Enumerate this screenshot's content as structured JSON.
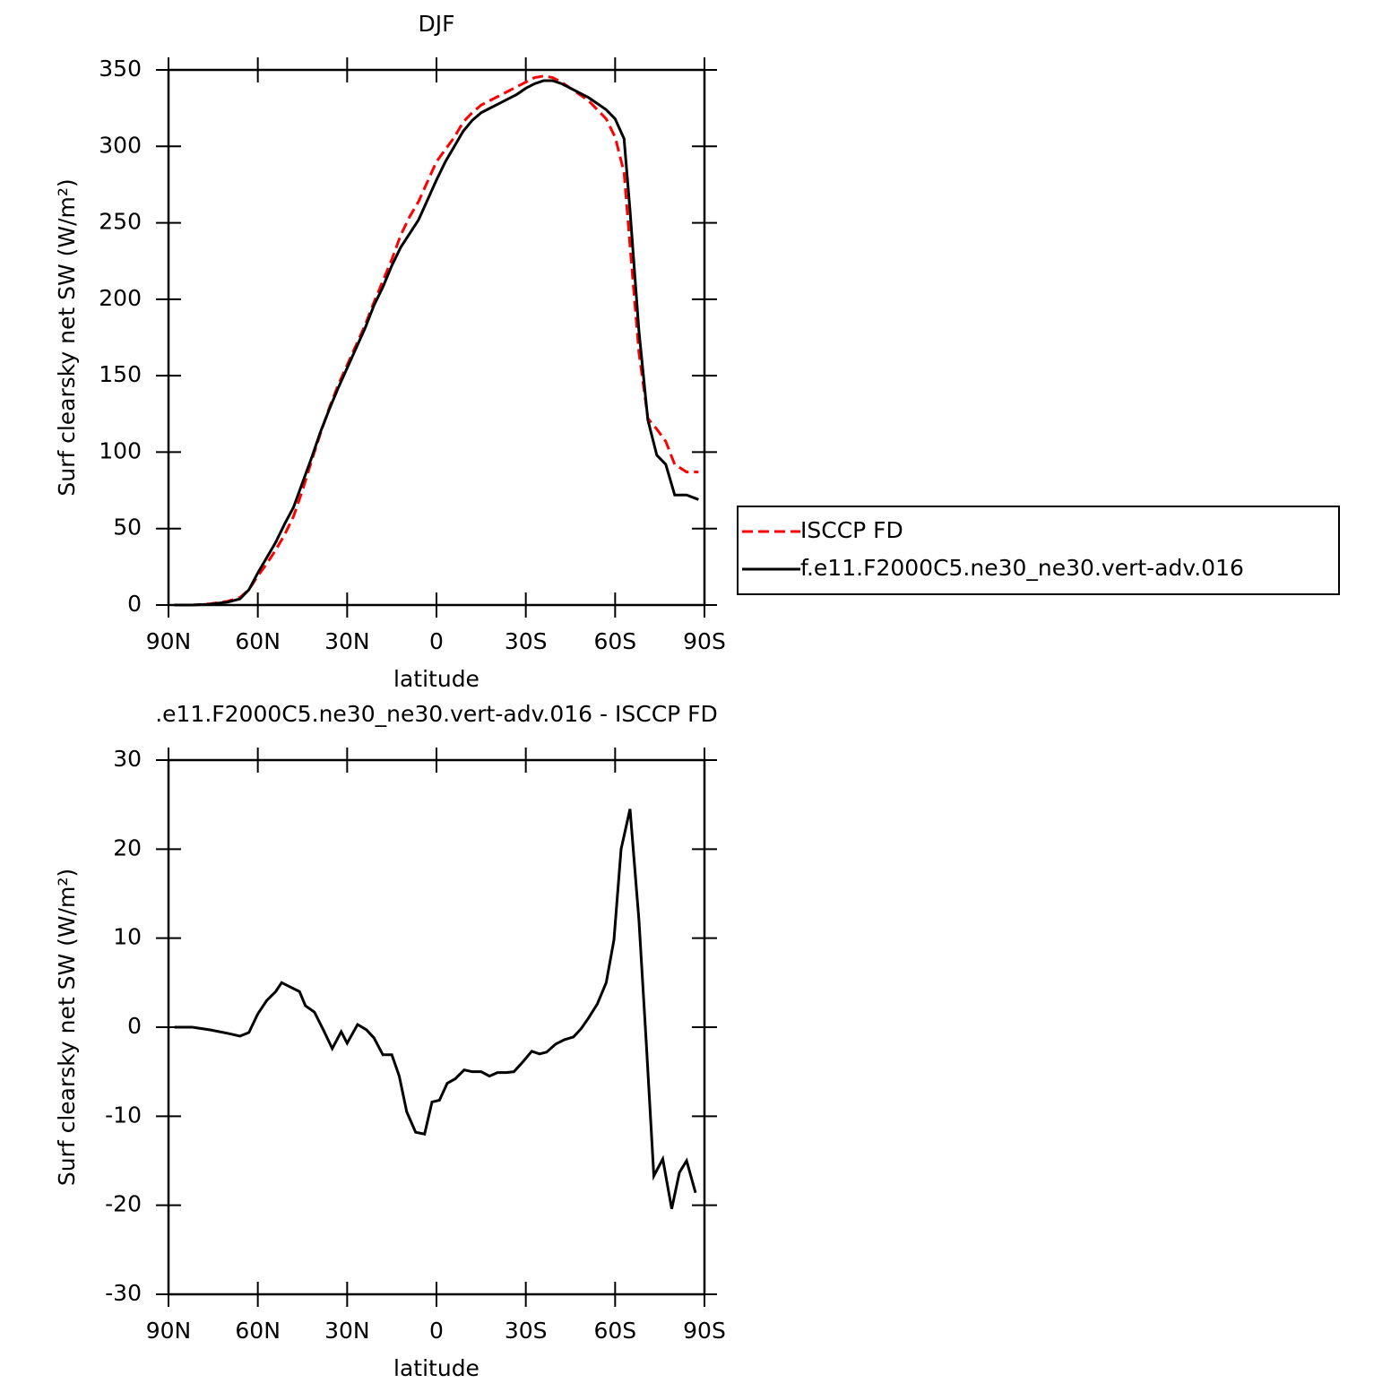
{
  "chart_data": [
    {
      "type": "line",
      "title": "DJF",
      "xlabel": "latitude",
      "ylabel": "Surf clearsky net SW (W/m²)",
      "x": [
        88,
        82,
        76,
        70,
        66,
        63,
        60,
        57,
        54,
        51,
        48,
        45,
        42,
        39,
        36,
        33,
        30,
        27,
        24,
        21,
        18,
        15,
        12,
        9,
        6,
        3,
        0,
        -3,
        -6,
        -9,
        -12,
        -15,
        -18,
        -21,
        -24,
        -27,
        -30,
        -33,
        -36,
        -39,
        -42,
        -45,
        -48,
        -51,
        -54,
        -57,
        -60,
        -63,
        -65,
        -68,
        -71,
        -74,
        -77,
        -80,
        -84,
        -88
      ],
      "series": [
        {
          "name": "ISCCP FD",
          "color": "#ff0000",
          "style": "dashed",
          "values": [
            0,
            0,
            0.8,
            2.5,
            5,
            10,
            19,
            27,
            36,
            46,
            58,
            75,
            94,
            112,
            129,
            144,
            157,
            170,
            183,
            198,
            212,
            226,
            242,
            254,
            264,
            277,
            290,
            298,
            306,
            316,
            322,
            327,
            330,
            333,
            336,
            339,
            342,
            345,
            346,
            345,
            342,
            338,
            334,
            330,
            324,
            318,
            306,
            283,
            235,
            165,
            122,
            115,
            107,
            92,
            87,
            87
          ]
        },
        {
          "name": "f.e11.F2000C5.ne30_ne30.vert-adv.016",
          "color": "#000000",
          "style": "solid",
          "values": [
            0,
            0,
            0.5,
            2,
            4,
            10,
            21,
            31,
            41,
            53,
            64,
            80,
            96,
            113,
            128,
            142,
            155,
            168,
            181,
            196,
            208,
            222,
            234,
            243,
            252,
            265,
            278,
            290,
            300,
            310,
            317,
            322,
            325,
            328,
            331,
            334,
            338,
            341,
            343,
            343,
            341,
            338,
            335,
            332,
            328,
            324,
            318,
            305,
            258,
            179,
            121,
            98,
            92,
            72,
            72,
            69
          ]
        }
      ],
      "xlim": [
        90,
        -90
      ],
      "xticks": [
        {
          "value": 90,
          "label": "90N"
        },
        {
          "value": 60,
          "label": "60N"
        },
        {
          "value": 30,
          "label": "30N"
        },
        0,
        {
          "value": -30,
          "label": "30S"
        },
        {
          "value": -60,
          "label": "60S"
        },
        {
          "value": -90,
          "label": "90S"
        }
      ],
      "ylim": [
        0,
        350
      ],
      "yticks": [
        0,
        50,
        100,
        150,
        200,
        250,
        300,
        350
      ],
      "legend": "right"
    },
    {
      "type": "line",
      "title": ".e11.F2000C5.ne30_ne30.vert-adv.016 - ISCCP FD",
      "xlabel": "latitude",
      "ylabel": "Surf clearsky net SW (W/m²)",
      "x": [
        88,
        82,
        76,
        70,
        66,
        63,
        60,
        57,
        54,
        52,
        49,
        46,
        44,
        41,
        38,
        35,
        32,
        30,
        26.5,
        23.5,
        21,
        18,
        15,
        12.5,
        10,
        7,
        4,
        1.5,
        -1,
        -3.6,
        -6.3,
        -9.3,
        -12,
        -15,
        -17.8,
        -20.5,
        -23.5,
        -26,
        -29,
        -32,
        -34.6,
        -37,
        -40,
        -43,
        -46,
        -48.5,
        -51,
        -54,
        -57,
        -59.6,
        -62,
        -65,
        -68,
        -70.5,
        -73,
        -76,
        -79,
        -81.6,
        -84,
        -87
      ],
      "series": [
        {
          "color": "#000000",
          "style": "solid",
          "values": [
            0,
            0,
            -0.3,
            -0.7,
            -1,
            -0.6,
            1.5,
            3,
            4,
            5,
            4.5,
            4,
            2.4,
            1.7,
            -0.3,
            -2.4,
            -0.5,
            -1.8,
            0.3,
            -0.3,
            -1.2,
            -3.1,
            -3.1,
            -5.5,
            -9.5,
            -11.8,
            -12,
            -8.4,
            -8.2,
            -6.3,
            -5.8,
            -4.8,
            -5,
            -5,
            -5.5,
            -5.1,
            -5.1,
            -5,
            -3.9,
            -2.7,
            -3,
            -2.8,
            -1.9,
            -1.4,
            -1.1,
            -0.2,
            1,
            2.6,
            5,
            9.8,
            20,
            24.5,
            12,
            -2,
            -16.7,
            -14.8,
            -20.4,
            -16.3,
            -15,
            -18.6
          ]
        }
      ],
      "xlim": [
        90,
        -90
      ],
      "xticks": [
        {
          "value": 90,
          "label": "90N"
        },
        {
          "value": 60,
          "label": "60N"
        },
        {
          "value": 30,
          "label": "30N"
        },
        0,
        {
          "value": -30,
          "label": "30S"
        },
        {
          "value": -60,
          "label": "60S"
        },
        {
          "value": -90,
          "label": "90S"
        }
      ],
      "ylim": [
        -30,
        30
      ],
      "yticks": [
        -30,
        -20,
        -10,
        0,
        10,
        20,
        30
      ]
    }
  ]
}
